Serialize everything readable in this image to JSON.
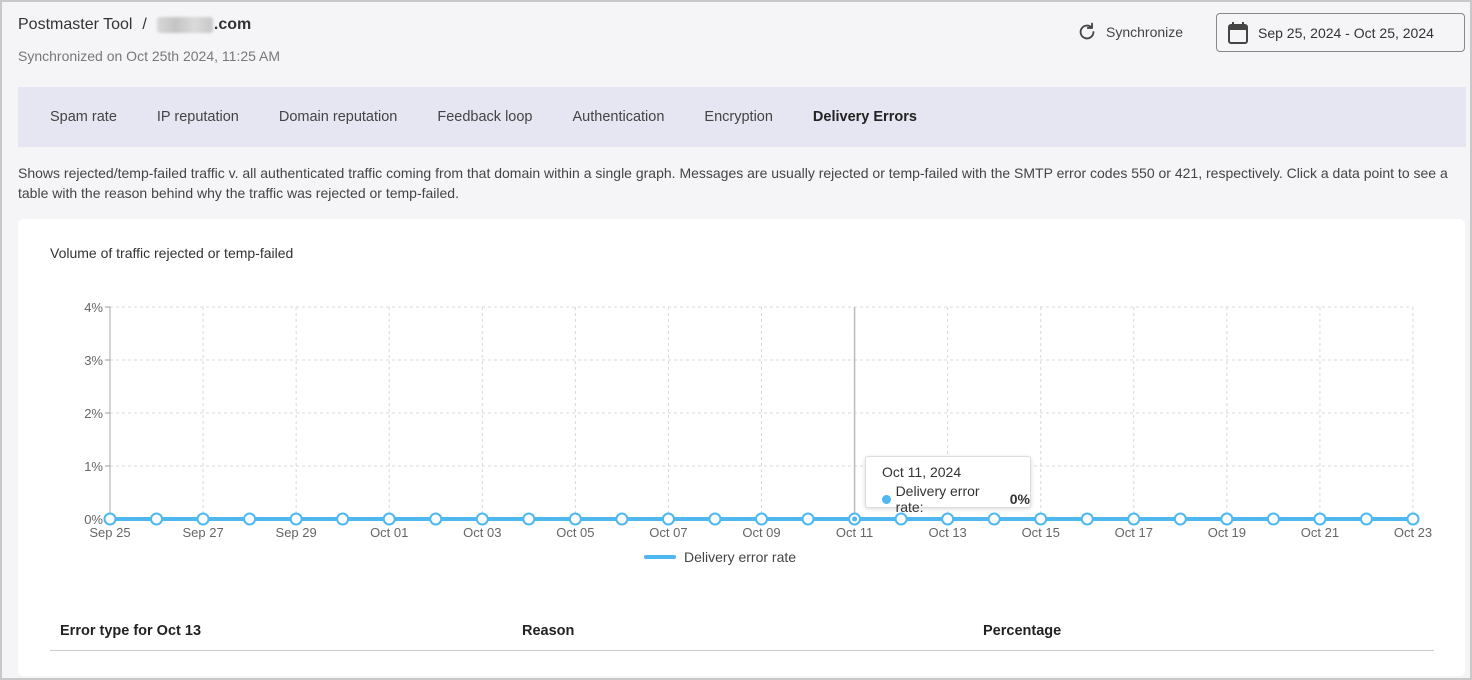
{
  "header": {
    "app_name": "Postmaster Tool",
    "separator": "/",
    "domain_suffix": ".com",
    "sync_info": "Synchronized on Oct 25th 2024, 11:25 AM"
  },
  "toolbar": {
    "sync_label": "Synchronize",
    "date_range": "Sep 25, 2024 - Oct 25, 2024"
  },
  "tabs": [
    {
      "label": "Spam rate",
      "active": false
    },
    {
      "label": "IP reputation",
      "active": false
    },
    {
      "label": "Domain reputation",
      "active": false
    },
    {
      "label": "Feedback loop",
      "active": false
    },
    {
      "label": "Authentication",
      "active": false
    },
    {
      "label": "Encryption",
      "active": false
    },
    {
      "label": "Delivery Errors",
      "active": true
    }
  ],
  "description": "Shows rejected/temp-failed traffic v. all authenticated traffic coming from that domain within a single graph. Messages are usually rejected or temp-failed with the SMTP error codes 550 or 421, respectively. Click a data point to see a table with the reason behind why the traffic was rejected or temp-failed.",
  "chart_data": {
    "type": "line",
    "title": "Volume of traffic rejected or temp-failed",
    "xlabel": "",
    "ylabel": "",
    "ylim": [
      0,
      4
    ],
    "y_ticks": [
      "0%",
      "1%",
      "2%",
      "3%",
      "4%"
    ],
    "x": [
      "Sep 25",
      "Sep 26",
      "Sep 27",
      "Sep 28",
      "Sep 29",
      "Sep 30",
      "Oct 01",
      "Oct 02",
      "Oct 03",
      "Oct 04",
      "Oct 05",
      "Oct 06",
      "Oct 07",
      "Oct 08",
      "Oct 09",
      "Oct 10",
      "Oct 11",
      "Oct 12",
      "Oct 13",
      "Oct 14",
      "Oct 15",
      "Oct 16",
      "Oct 17",
      "Oct 18",
      "Oct 19",
      "Oct 20",
      "Oct 21",
      "Oct 22",
      "Oct 23"
    ],
    "x_tick_labels": [
      "Sep 25",
      "Sep 27",
      "Sep 29",
      "Oct 01",
      "Oct 03",
      "Oct 05",
      "Oct 07",
      "Oct 09",
      "Oct 11",
      "Oct 13",
      "Oct 15",
      "Oct 17",
      "Oct 19",
      "Oct 21",
      "Oct 23"
    ],
    "series": [
      {
        "name": "Delivery error rate",
        "values": [
          0,
          0,
          0,
          0,
          0,
          0,
          0,
          0,
          0,
          0,
          0,
          0,
          0,
          0,
          0,
          0,
          0,
          0,
          0,
          0,
          0,
          0,
          0,
          0,
          0,
          0,
          0,
          0,
          0
        ]
      }
    ],
    "grid": true,
    "legend": "bottom",
    "color": "#4fb8f0",
    "highlighted_index": 16
  },
  "tooltip": {
    "date": "Oct 11, 2024",
    "label": "Delivery error rate:",
    "value": "0%"
  },
  "legend": {
    "label": "Delivery error rate"
  },
  "table": {
    "col_error": "Error type for Oct 13",
    "col_reason": "Reason",
    "col_percentage": "Percentage"
  }
}
